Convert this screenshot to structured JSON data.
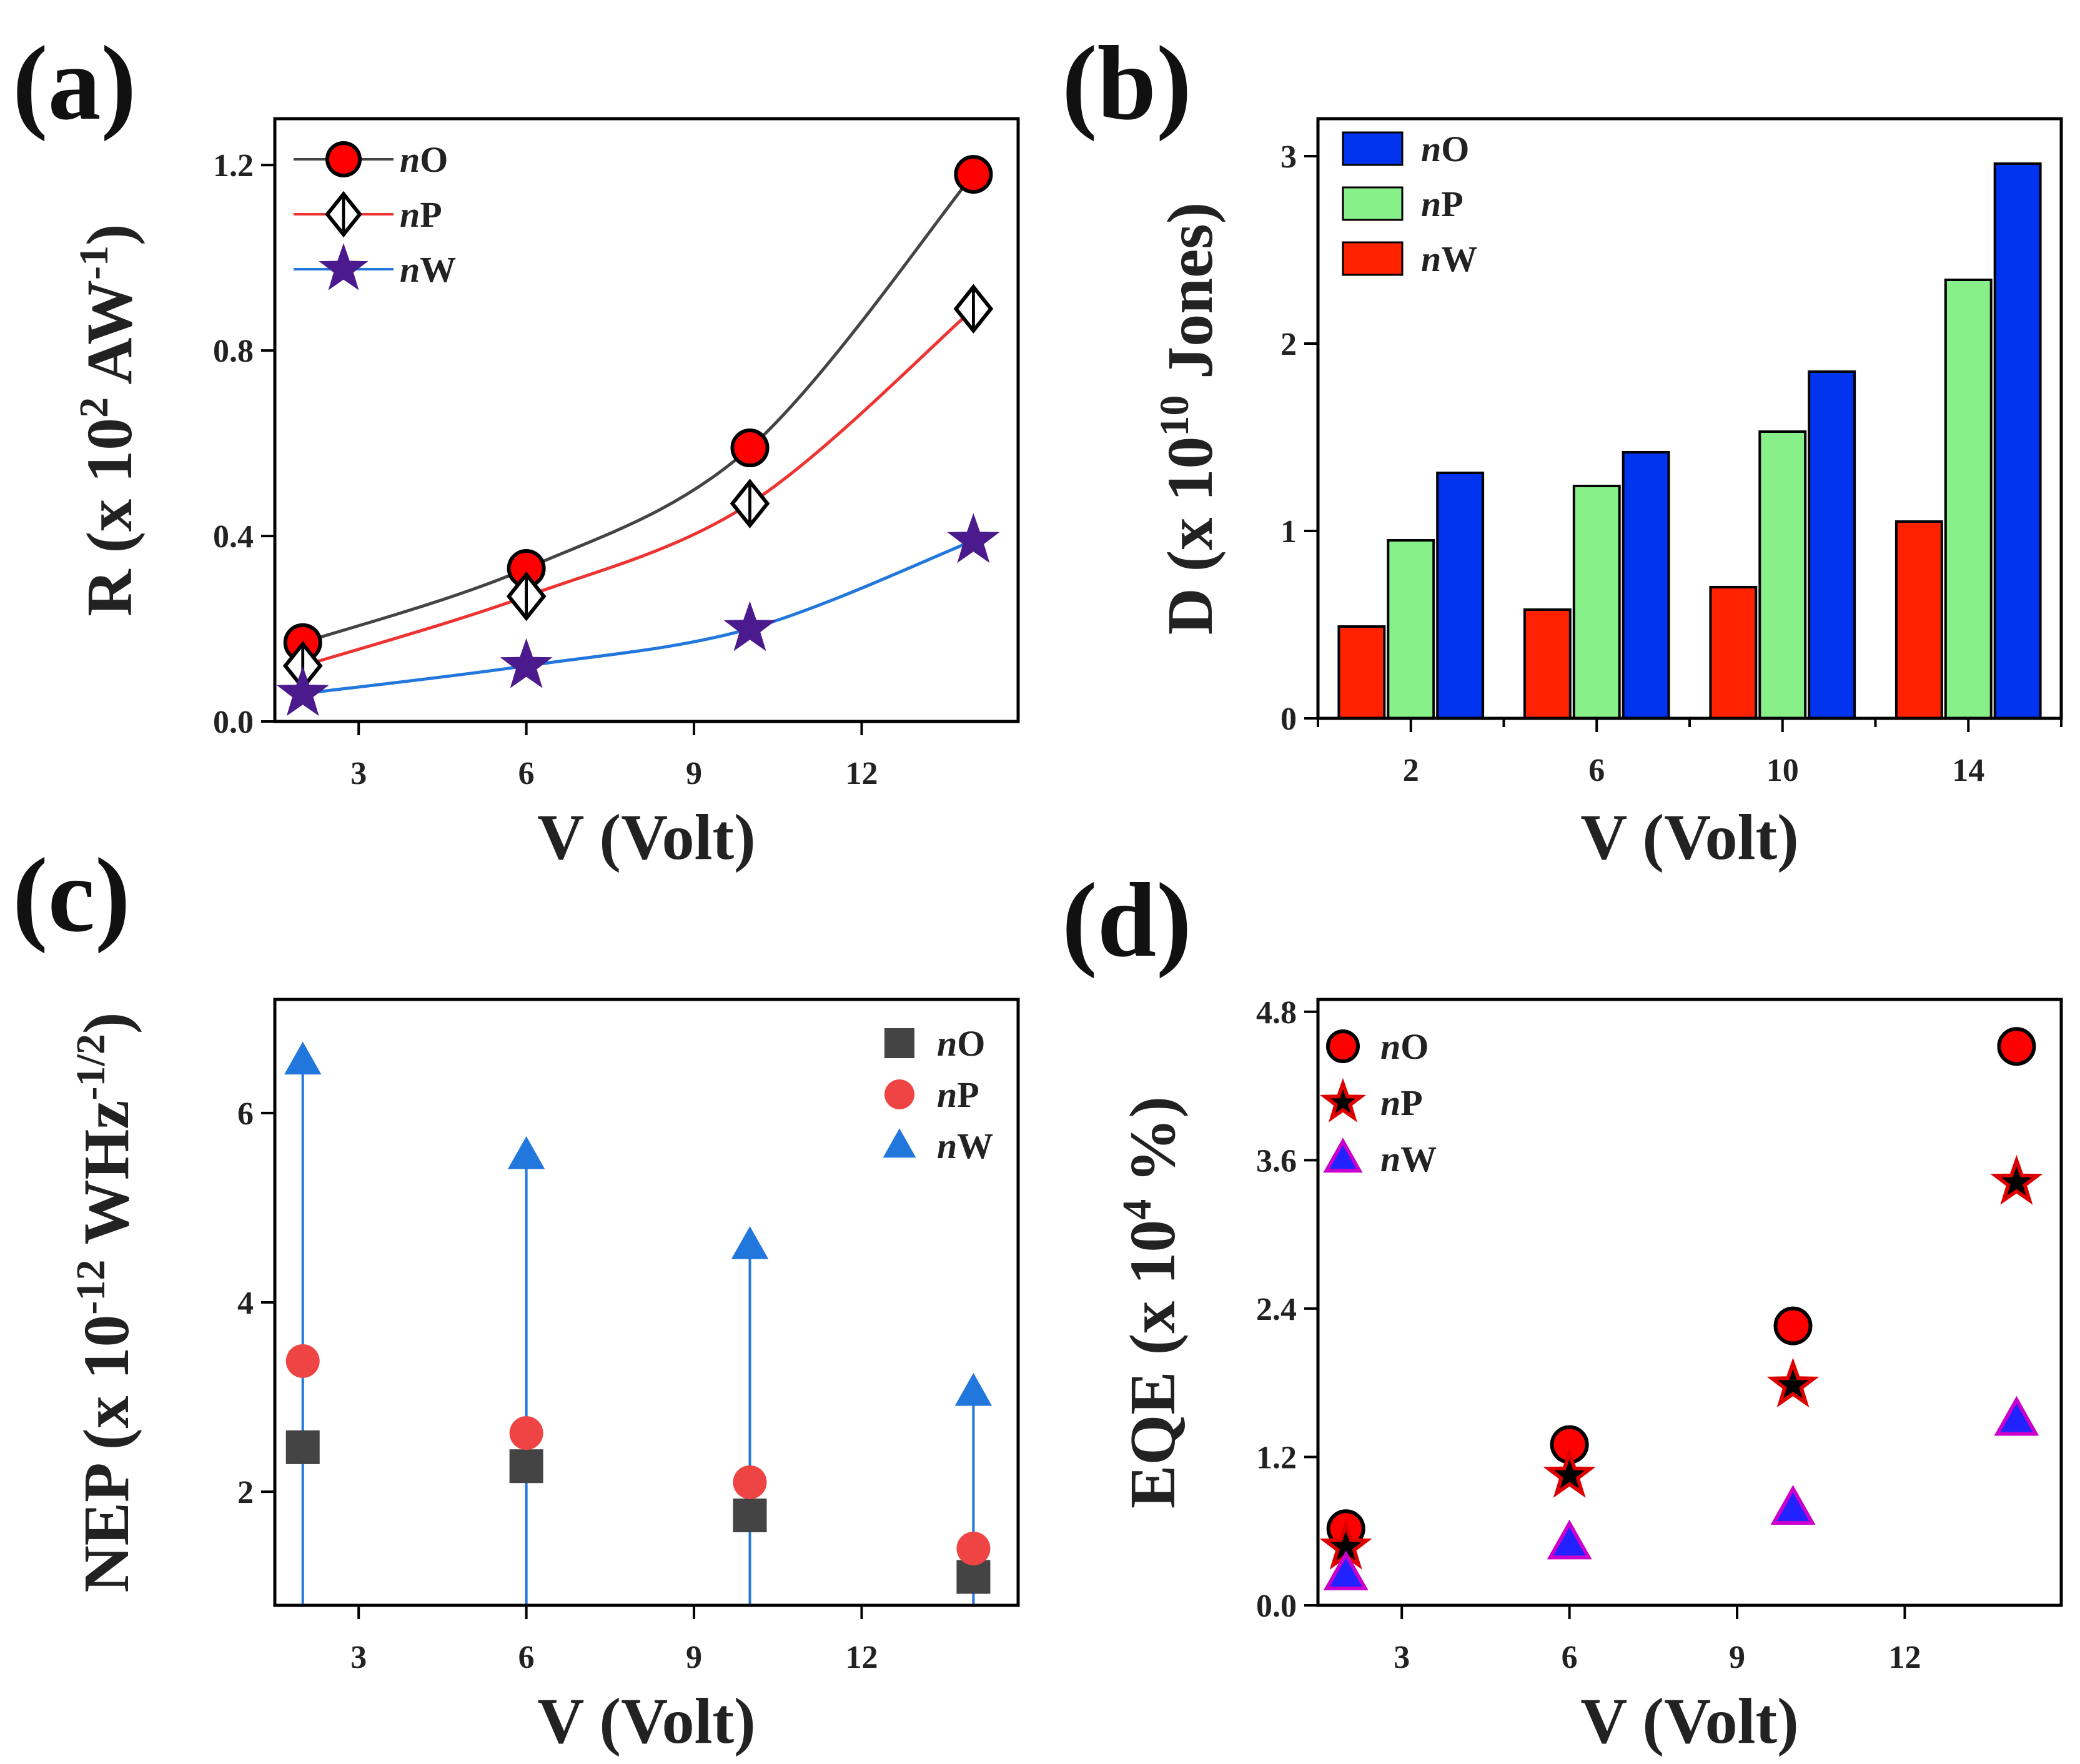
{
  "panel_labels": [
    "(a)",
    "(b)",
    "(c)",
    "(d)"
  ],
  "chart_data": [
    {
      "id": "a",
      "type": "line",
      "x": [
        2,
        6,
        10,
        14
      ],
      "series": [
        {
          "name": "nO",
          "prefix": "n",
          "suffix": "O",
          "values": [
            0.17,
            0.33,
            0.59,
            1.18
          ],
          "line_color": "#444444",
          "marker": "circle",
          "fill": "#ff0000",
          "stroke": "#000000"
        },
        {
          "name": "nP",
          "prefix": "n",
          "suffix": "P",
          "values": [
            0.12,
            0.27,
            0.47,
            0.89
          ],
          "line_color": "#ee3333",
          "marker": "diamond",
          "fill": "#ffffff",
          "stroke": "#000000"
        },
        {
          "name": "nW",
          "prefix": "n",
          "suffix": "W",
          "values": [
            0.06,
            0.12,
            0.2,
            0.39
          ],
          "line_color": "#2277dd",
          "marker": "star",
          "fill": "#4b1a8c",
          "stroke": "#4b1a8c"
        }
      ],
      "xlim": [
        1.5,
        14.8
      ],
      "ylim": [
        0,
        1.3
      ],
      "xticks": [
        3,
        6,
        9,
        12
      ],
      "yticks": [
        0,
        0.4,
        0.8,
        1.2
      ],
      "ytick_labels": [
        "0.0",
        "0.4",
        "0.8",
        "1.2"
      ],
      "xlabel": "V (Volt)",
      "ylabel": {
        "base": "R (x 10",
        "sup1": "2",
        "mid": " AW",
        "sup2": "-1",
        "end": ")"
      },
      "legend_position": "top-left"
    },
    {
      "id": "b",
      "type": "bar",
      "categories": [
        "2",
        "6",
        "10",
        "14"
      ],
      "series": [
        {
          "name": "nW",
          "prefix": "n",
          "suffix": "W",
          "values": [
            0.49,
            0.58,
            0.7,
            1.05
          ],
          "color": "#ff2200"
        },
        {
          "name": "nP",
          "prefix": "n",
          "suffix": "P",
          "values": [
            0.95,
            1.24,
            1.53,
            2.34
          ],
          "color": "#88f088"
        },
        {
          "name": "nO",
          "prefix": "n",
          "suffix": "O",
          "values": [
            1.31,
            1.42,
            1.85,
            2.96
          ],
          "color": "#0033ee"
        }
      ],
      "legend_order": [
        "nO",
        "nP",
        "nW"
      ],
      "ylim": [
        0,
        3.2
      ],
      "yticks": [
        0,
        1,
        2,
        3
      ],
      "xlabel": "V (Volt)",
      "ylabel": {
        "base": "D (x 10",
        "sup1": "10",
        "mid": " Jones)",
        "sup2": "",
        "end": ""
      },
      "legend_position": "top-left"
    },
    {
      "id": "c",
      "type": "scatter",
      "x": [
        2,
        6,
        10,
        14
      ],
      "series": [
        {
          "name": "nO",
          "prefix": "n",
          "suffix": "O",
          "values": [
            2.47,
            2.27,
            1.75,
            1.1
          ],
          "marker": "square",
          "color": "#444444"
        },
        {
          "name": "nP",
          "prefix": "n",
          "suffix": "P",
          "values": [
            3.38,
            2.62,
            2.1,
            1.4
          ],
          "marker": "circle",
          "color": "#ee4444"
        },
        {
          "name": "nW",
          "prefix": "n",
          "suffix": "W",
          "values": [
            6.55,
            5.55,
            4.6,
            3.05
          ],
          "marker": "triangle",
          "color": "#2277dd",
          "droplines": true
        }
      ],
      "xlim": [
        1.5,
        14.8
      ],
      "ylim": [
        0.8,
        7.2
      ],
      "xticks": [
        3,
        6,
        9,
        12
      ],
      "yticks": [
        2,
        4,
        6
      ],
      "xlabel": "V (Volt)",
      "ylabel": {
        "base": "NEP (x 10",
        "sup1": "-12",
        "mid": " WHz",
        "sup2": "-1/2",
        "end": ")"
      },
      "legend_position": "top-right"
    },
    {
      "id": "d",
      "type": "scatter",
      "x": [
        2,
        6,
        10,
        14
      ],
      "series": [
        {
          "name": "nO",
          "prefix": "n",
          "suffix": "O",
          "values": [
            0.62,
            1.3,
            2.26,
            4.52
          ],
          "marker": "circle",
          "fill": "#ff0000",
          "stroke": "#000000"
        },
        {
          "name": "nP",
          "prefix": "n",
          "suffix": "P",
          "values": [
            0.47,
            1.05,
            1.78,
            3.42
          ],
          "marker": "star",
          "fill": "#000000",
          "stroke": "#dd0000"
        },
        {
          "name": "nW",
          "prefix": "n",
          "suffix": "W",
          "values": [
            0.25,
            0.5,
            0.78,
            1.5
          ],
          "marker": "triangle",
          "fill": "#2222ff",
          "stroke": "#cc00cc"
        }
      ],
      "xlim": [
        1.5,
        14.8
      ],
      "ylim": [
        0,
        4.9
      ],
      "xticks": [
        3,
        6,
        9,
        12
      ],
      "yticks": [
        0,
        1.2,
        2.4,
        3.6,
        4.8
      ],
      "ytick_labels": [
        "0.0",
        "1.2",
        "2.4",
        "3.6",
        "4.8"
      ],
      "xlabel": "V (Volt)",
      "ylabel": {
        "base": "EQE (x 10",
        "sup1": "4",
        "mid": " %)",
        "sup2": "",
        "end": ""
      },
      "legend_position": "top-left"
    }
  ]
}
